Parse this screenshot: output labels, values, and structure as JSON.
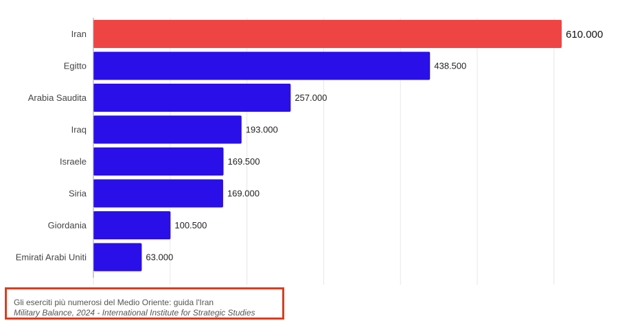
{
  "chart_data": {
    "type": "bar",
    "orientation": "horizontal",
    "categories": [
      "Iran",
      "Egitto",
      "Arabia Saudita",
      "Iraq",
      "Israele",
      "Siria",
      "Giordania",
      "Emirati Arabi Uniti"
    ],
    "values": [
      610000,
      438500,
      257000,
      193000,
      169500,
      169000,
      100500,
      63000
    ],
    "value_labels": [
      "610.000",
      "438.500",
      "257.000",
      "193.000",
      "169.500",
      "169.000",
      "100.500",
      "63.000"
    ],
    "xlim": [
      0,
      700000
    ],
    "grid": "vertical",
    "colors": {
      "highlight": "#ef4444",
      "default": "#2a0fe8"
    },
    "highlight_index": 0
  },
  "caption": {
    "title": "Gli eserciti più numerosi del Medio Oriente: guida l'Iran",
    "source": "Military Balance, 2024 - International Institute for Strategic Studies"
  }
}
